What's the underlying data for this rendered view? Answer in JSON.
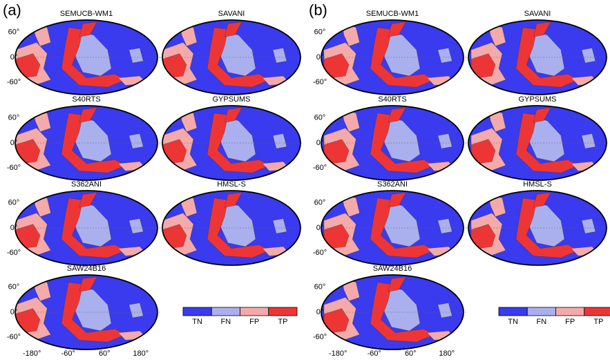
{
  "panels": [
    {
      "label": "(a)",
      "maps": [
        "SEMUCB-WM1",
        "SAVANI",
        "S40RTS",
        "GYPSUMS",
        "S362ANI",
        "HMSL-S",
        "SAW24B16"
      ]
    },
    {
      "label": "(b)",
      "maps": [
        "SEMUCB-WM1",
        "SAVANI",
        "S40RTS",
        "GYPSUMS",
        "S362ANI",
        "HMSL-S",
        "SAW24B16"
      ]
    }
  ],
  "lat_labels": [
    "60°",
    "0°",
    "-60°"
  ],
  "lon_labels": [
    "-180°",
    "-60°",
    "60°",
    "180°"
  ],
  "legend": [
    {
      "label": "TN",
      "color": "#3a3aee"
    },
    {
      "label": "FN",
      "color": "#aab0ee"
    },
    {
      "label": "FP",
      "color": "#f4aaaa"
    },
    {
      "label": "TP",
      "color": "#ee3535"
    }
  ]
}
